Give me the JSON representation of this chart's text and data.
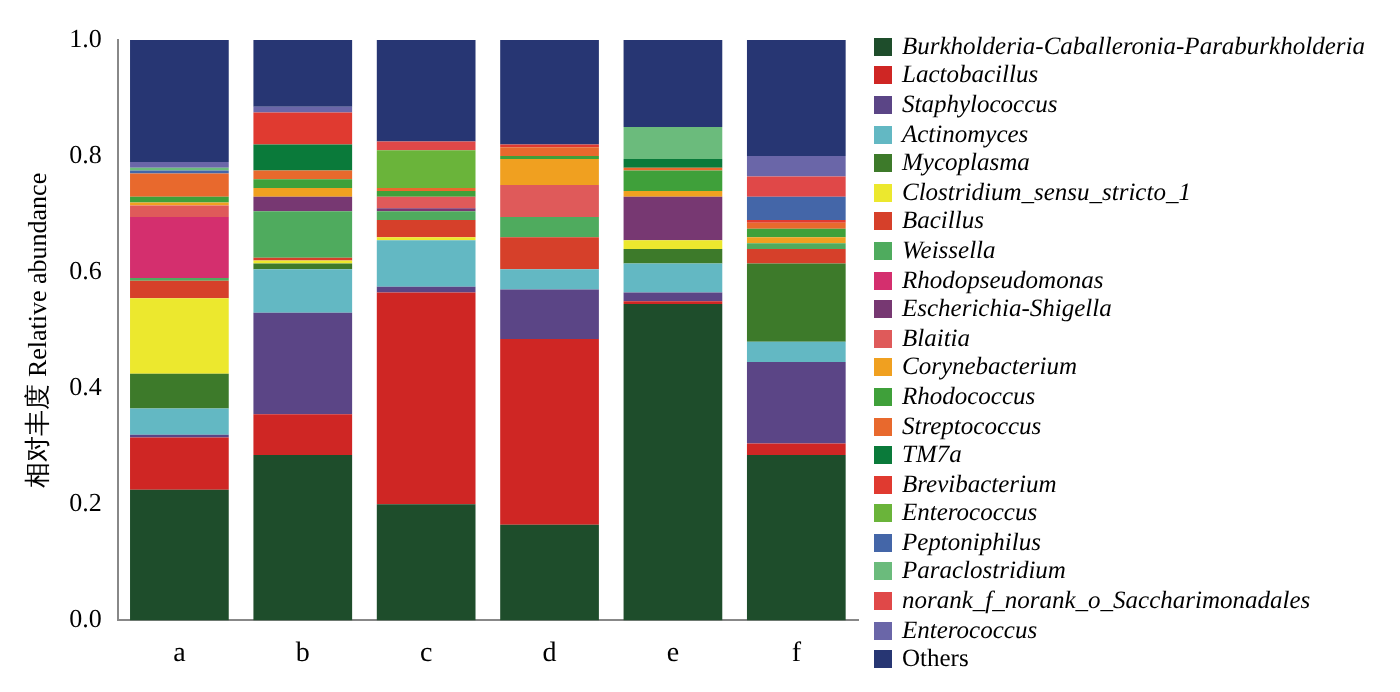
{
  "chart_data": {
    "type": "bar",
    "stacked": true,
    "ylabel": "相对丰度 Relative abundance",
    "categories": [
      "a",
      "b",
      "c",
      "d",
      "e",
      "f"
    ],
    "ylim": [
      0,
      1
    ],
    "yticks": [
      {
        "value": 0,
        "label": "0.0"
      },
      {
        "value": 0.2,
        "label": "0.2"
      },
      {
        "value": 0.4,
        "label": "0.4"
      },
      {
        "value": 0.6,
        "label": "0.6"
      },
      {
        "value": 0.8,
        "label": "0.8"
      },
      {
        "value": 1,
        "label": "1.0"
      }
    ],
    "grid": false,
    "legend": "right",
    "series": [
      {
        "name": "Burkholderia-Caballeronia-Paraburkholderia",
        "color": "#1e4d2b",
        "values": [
          0.225,
          0.285,
          0.2,
          0.165,
          0.545,
          0.285
        ]
      },
      {
        "name": "Lactobacillus",
        "color": "#cf2624",
        "values": [
          0.09,
          0.07,
          0.365,
          0.32,
          0.005,
          0.02
        ]
      },
      {
        "name": "Staphylococcus",
        "color": "#5b4586",
        "values": [
          0.005,
          0.175,
          0.01,
          0.085,
          0.015,
          0.14
        ]
      },
      {
        "name": "Actinomyces",
        "color": "#63b8c3",
        "values": [
          0.045,
          0.075,
          0.08,
          0.035,
          0.05,
          0.035
        ]
      },
      {
        "name": "Mycoplasma",
        "color": "#3d7a2a",
        "values": [
          0.06,
          0.01,
          0,
          0,
          0.025,
          0.135
        ]
      },
      {
        "name": "Clostridium_sensu_stricto_1",
        "color": "#ece82e",
        "values": [
          0.13,
          0.005,
          0.005,
          0,
          0.015,
          0
        ]
      },
      {
        "name": "Bacillus",
        "color": "#d6402a",
        "values": [
          0.03,
          0.005,
          0.03,
          0.055,
          0,
          0.025
        ]
      },
      {
        "name": "Weissella",
        "color": "#4fab5e",
        "values": [
          0.005,
          0.08,
          0.015,
          0.035,
          0,
          0.01
        ]
      },
      {
        "name": "Rhodopseudomonas",
        "color": "#d42f6e",
        "values": [
          0.105,
          0,
          0,
          0,
          0,
          0
        ]
      },
      {
        "name": "Escherichia-Shigella",
        "color": "#773872",
        "values": [
          0,
          0.025,
          0.005,
          0,
          0.075,
          0
        ]
      },
      {
        "name": "Blaitia",
        "color": "#df5a5a",
        "values": [
          0.02,
          0,
          0.02,
          0.055,
          0,
          0
        ]
      },
      {
        "name": "Corynebacterium",
        "color": "#f0a020",
        "values": [
          0.005,
          0.015,
          0,
          0.045,
          0.01,
          0.01
        ]
      },
      {
        "name": "Rhodococcus",
        "color": "#3fa03a",
        "values": [
          0.01,
          0.015,
          0.01,
          0.005,
          0.035,
          0.015
        ]
      },
      {
        "name": "Streptococcus",
        "color": "#e8692d",
        "values": [
          0.04,
          0.015,
          0.005,
          0.015,
          0.005,
          0.01
        ]
      },
      {
        "name": "TM7a",
        "color": "#0a7a3a",
        "values": [
          0,
          0.045,
          0,
          0,
          0.015,
          0
        ]
      },
      {
        "name": "Brevibacterium",
        "color": "#e03a30",
        "values": [
          0,
          0.055,
          0,
          0.005,
          0,
          0.005
        ]
      },
      {
        "name": "Enterococcus",
        "color": "#6ab43a",
        "values": [
          0,
          0,
          0.065,
          0,
          0,
          0
        ]
      },
      {
        "name": "Peptoniphilus",
        "color": "#4466a8",
        "values": [
          0.005,
          0,
          0,
          0,
          0,
          0.04
        ]
      },
      {
        "name": "Paraclostridium",
        "color": "#6bbb7c",
        "values": [
          0.005,
          0,
          0,
          0,
          0.055,
          0
        ]
      },
      {
        "name": "norank_f_norank_o_Saccharimonadales",
        "color": "#e04848",
        "values": [
          0,
          0,
          0.015,
          0,
          0,
          0.035
        ]
      },
      {
        "name": "Enterococcus",
        "color": "#6a66a8",
        "values": [
          0.01,
          0.01,
          0,
          0,
          0,
          0.035
        ]
      },
      {
        "name": "Others",
        "color": "#273673",
        "values": [
          0.21,
          0.115,
          0.175,
          0.18,
          0.15,
          0.2
        ]
      }
    ]
  }
}
